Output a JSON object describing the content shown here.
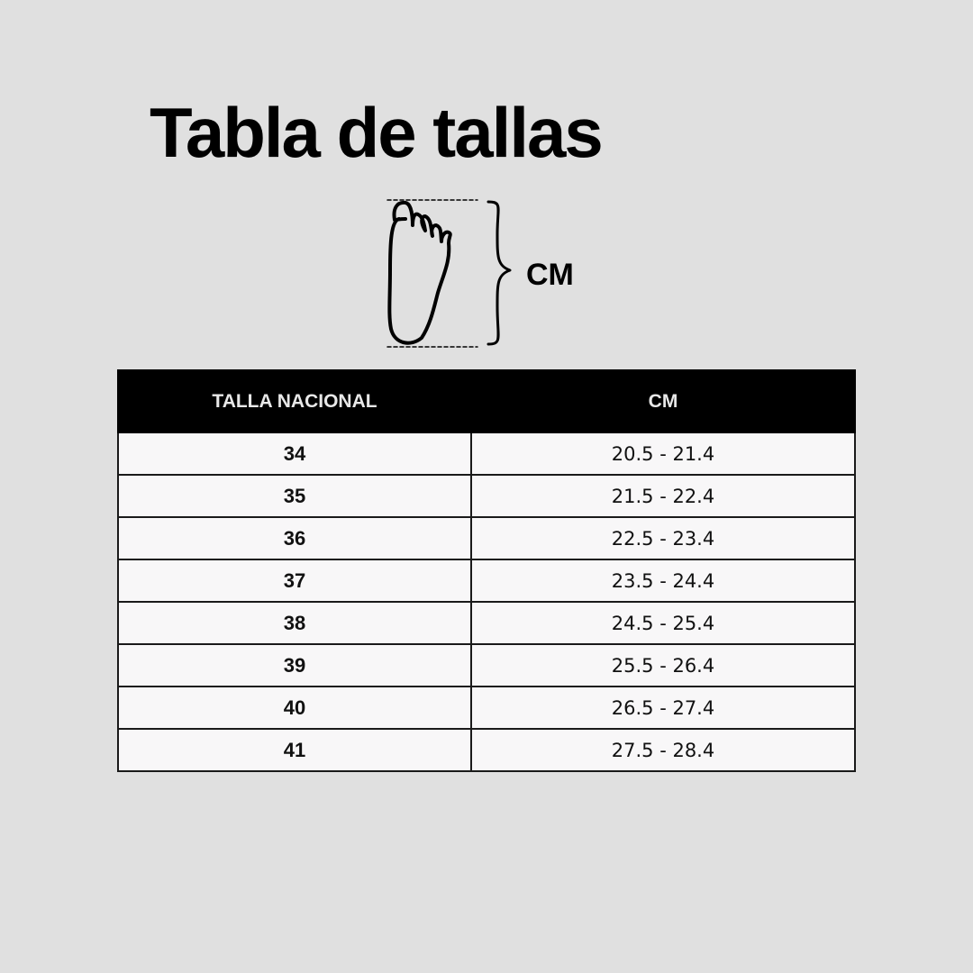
{
  "title": "Tabla de tallas",
  "diagram": {
    "icon": "foot-icon",
    "measure_label": "CM"
  },
  "table": {
    "headers": [
      "TALLA NACIONAL",
      "CM"
    ],
    "rows": [
      {
        "size": "34",
        "cm": "20.5 - 21.4"
      },
      {
        "size": "35",
        "cm": "21.5 - 22.4"
      },
      {
        "size": "36",
        "cm": "22.5 - 23.4"
      },
      {
        "size": "37",
        "cm": "23.5 - 24.4"
      },
      {
        "size": "38",
        "cm": "24.5 - 25.4"
      },
      {
        "size": "39",
        "cm": "25.5 - 26.4"
      },
      {
        "size": "40",
        "cm": "26.5 - 27.4"
      },
      {
        "size": "41",
        "cm": "27.5 - 28.4"
      }
    ]
  },
  "colors": {
    "background": "#e0e0e0",
    "header_bg": "#000000",
    "row_bg": "#f8f7f8"
  }
}
